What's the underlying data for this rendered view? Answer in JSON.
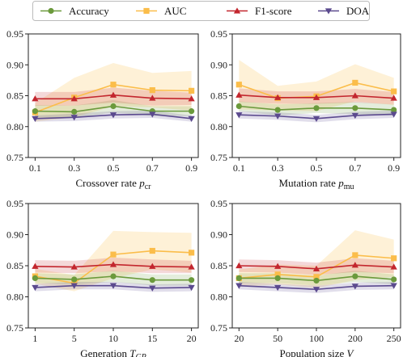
{
  "legend": {
    "placement": "top-center",
    "entries": [
      {
        "name": "Accuracy",
        "color": "#6b9a3c",
        "marker": "circle"
      },
      {
        "name": "AUC",
        "color": "#fbbd4a",
        "marker": "square"
      },
      {
        "name": "F1-score",
        "color": "#c3262e",
        "marker": "triangle-up"
      },
      {
        "name": "DOA",
        "color": "#5b4a8e",
        "marker": "triangle-down"
      }
    ]
  },
  "chart_data": [
    {
      "type": "line",
      "xlabel": "Crossover rate",
      "xsymbol": "p",
      "xsubscript": "cr",
      "x": [
        "0.1",
        "0.3",
        "0.5",
        "0.7",
        "0.9"
      ],
      "ylim": [
        0.75,
        0.95
      ],
      "yticks": [
        "0.75",
        "0.80",
        "0.85",
        "0.90",
        "0.95"
      ],
      "series": [
        {
          "name": "Accuracy",
          "values": [
            0.825,
            0.824,
            0.833,
            0.825,
            0.825
          ],
          "band": [
            0.01,
            0.01,
            0.01,
            0.008,
            0.008
          ]
        },
        {
          "name": "AUC",
          "values": [
            0.823,
            0.847,
            0.868,
            0.859,
            0.858
          ],
          "band": [
            0.015,
            0.032,
            0.035,
            0.028,
            0.032
          ]
        },
        {
          "name": "F1-score",
          "values": [
            0.845,
            0.845,
            0.851,
            0.846,
            0.845
          ],
          "band": [
            0.011,
            0.011,
            0.012,
            0.012,
            0.01
          ]
        },
        {
          "name": "DOA",
          "values": [
            0.813,
            0.815,
            0.819,
            0.82,
            0.813
          ],
          "band": [
            0.005,
            0.006,
            0.006,
            0.006,
            0.005
          ]
        }
      ]
    },
    {
      "type": "line",
      "xlabel": "Mutation rate",
      "xsymbol": "p",
      "xsubscript": "mu",
      "x": [
        "0.1",
        "0.3",
        "0.5",
        "0.7",
        "0.9"
      ],
      "ylim": [
        0.75,
        0.95
      ],
      "yticks": [
        "0.75",
        "0.80",
        "0.85",
        "0.90",
        "0.95"
      ],
      "series": [
        {
          "name": "Accuracy",
          "values": [
            0.833,
            0.827,
            0.83,
            0.83,
            0.827
          ],
          "band": [
            0.008,
            0.009,
            0.008,
            0.01,
            0.009
          ]
        },
        {
          "name": "AUC",
          "values": [
            0.868,
            0.846,
            0.849,
            0.871,
            0.857
          ],
          "band": [
            0.04,
            0.02,
            0.024,
            0.03,
            0.022
          ]
        },
        {
          "name": "F1-score",
          "values": [
            0.851,
            0.847,
            0.847,
            0.85,
            0.846
          ],
          "band": [
            0.011,
            0.01,
            0.01,
            0.011,
            0.01
          ]
        },
        {
          "name": "DOA",
          "values": [
            0.819,
            0.817,
            0.813,
            0.818,
            0.82
          ],
          "band": [
            0.006,
            0.006,
            0.006,
            0.006,
            0.006
          ]
        }
      ]
    },
    {
      "type": "line",
      "xlabel": "Generation",
      "xsymbol": "T",
      "xsubscript": "GP",
      "x": [
        "1",
        "5",
        "10",
        "15",
        "20"
      ],
      "ylim": [
        0.75,
        0.95
      ],
      "yticks": [
        "0.75",
        "0.80",
        "0.85",
        "0.90",
        "0.95"
      ],
      "series": [
        {
          "name": "Accuracy",
          "values": [
            0.83,
            0.828,
            0.833,
            0.827,
            0.827
          ],
          "band": [
            0.008,
            0.008,
            0.009,
            0.009,
            0.009
          ]
        },
        {
          "name": "AUC",
          "values": [
            0.833,
            0.822,
            0.868,
            0.874,
            0.871
          ],
          "band": [
            0.012,
            0.013,
            0.038,
            0.03,
            0.032
          ]
        },
        {
          "name": "F1-score",
          "values": [
            0.849,
            0.848,
            0.852,
            0.849,
            0.848
          ],
          "band": [
            0.01,
            0.01,
            0.011,
            0.011,
            0.01
          ]
        },
        {
          "name": "DOA",
          "values": [
            0.815,
            0.818,
            0.818,
            0.814,
            0.815
          ],
          "band": [
            0.006,
            0.006,
            0.006,
            0.006,
            0.006
          ]
        }
      ]
    },
    {
      "type": "line",
      "xlabel": "Population size",
      "xsymbol": "V",
      "xsubscript": "",
      "x": [
        "20",
        "50",
        "100",
        "200",
        "250"
      ],
      "ylim": [
        0.75,
        0.95
      ],
      "yticks": [
        "0.75",
        "0.80",
        "0.85",
        "0.90",
        "0.95"
      ],
      "series": [
        {
          "name": "Accuracy",
          "values": [
            0.83,
            0.83,
            0.826,
            0.833,
            0.828
          ],
          "band": [
            0.008,
            0.008,
            0.008,
            0.009,
            0.008
          ]
        },
        {
          "name": "AUC",
          "values": [
            0.83,
            0.836,
            0.832,
            0.867,
            0.862
          ],
          "band": [
            0.014,
            0.016,
            0.018,
            0.04,
            0.03
          ]
        },
        {
          "name": "F1-score",
          "values": [
            0.85,
            0.849,
            0.845,
            0.851,
            0.848
          ],
          "band": [
            0.01,
            0.01,
            0.01,
            0.011,
            0.01
          ]
        },
        {
          "name": "DOA",
          "values": [
            0.818,
            0.815,
            0.812,
            0.817,
            0.818
          ],
          "band": [
            0.006,
            0.006,
            0.006,
            0.006,
            0.006
          ]
        }
      ]
    }
  ]
}
